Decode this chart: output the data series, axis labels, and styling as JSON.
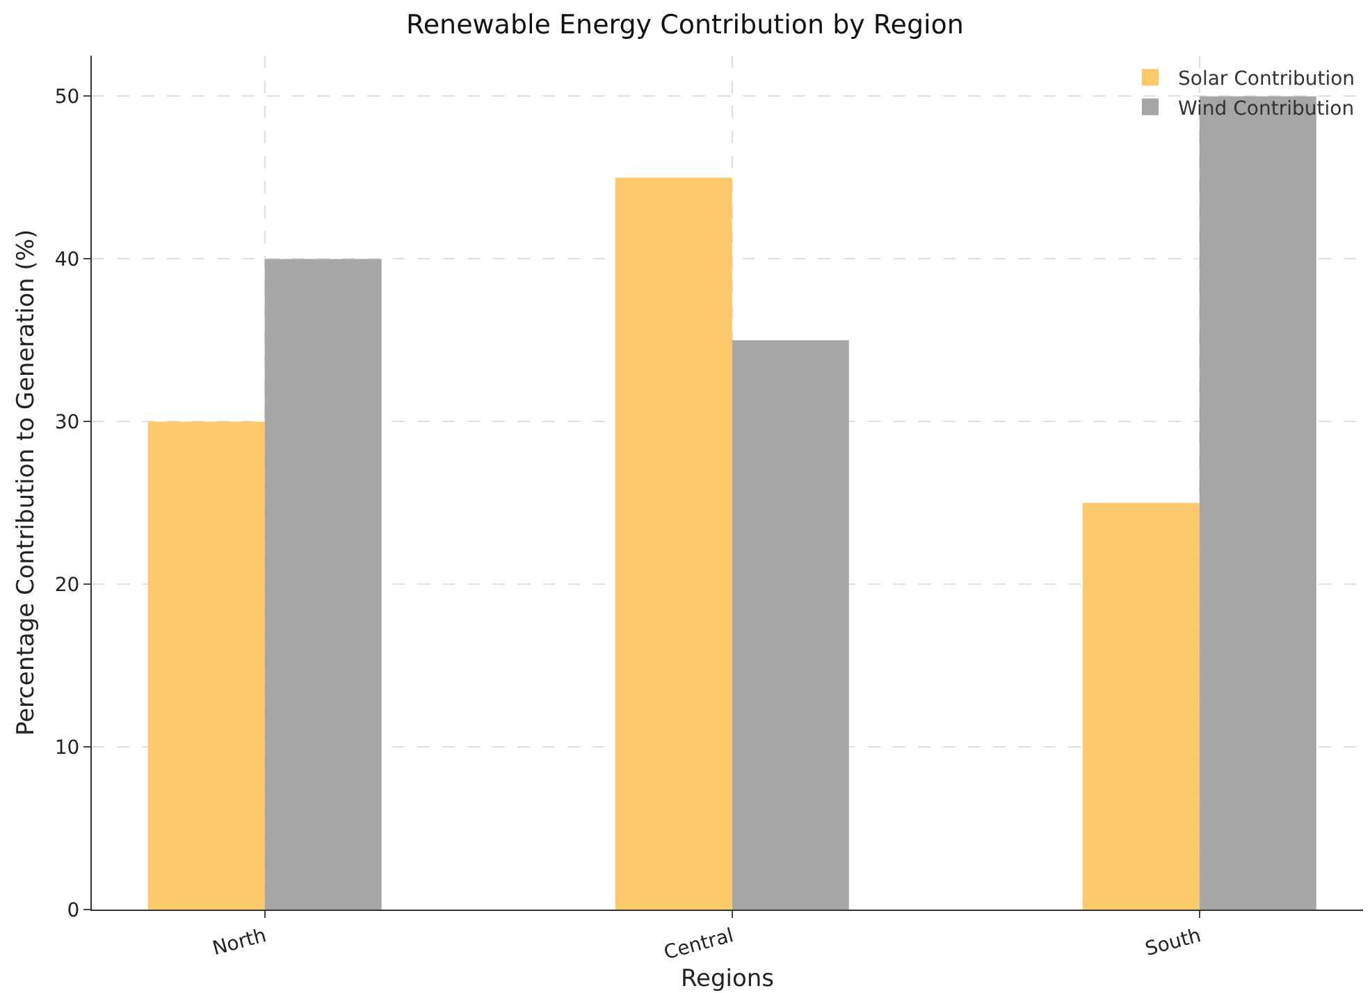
{
  "chart_data": {
    "type": "bar",
    "title": "Renewable Energy Contribution by Region",
    "xlabel": "Regions",
    "ylabel": "Percentage Contribution to Generation (%)",
    "categories": [
      "North",
      "Central",
      "South"
    ],
    "series": [
      {
        "name": "Solar Contribution",
        "color": "#fdca6b",
        "values": [
          30,
          45,
          25
        ]
      },
      {
        "name": "Wind Contribution",
        "color": "#a6a6a6",
        "values": [
          40,
          35,
          50
        ]
      }
    ],
    "ylim": [
      0,
      52.5
    ],
    "yticks": [
      0,
      10,
      20,
      30,
      40,
      50
    ],
    "grid": true,
    "legend": "top right"
  }
}
